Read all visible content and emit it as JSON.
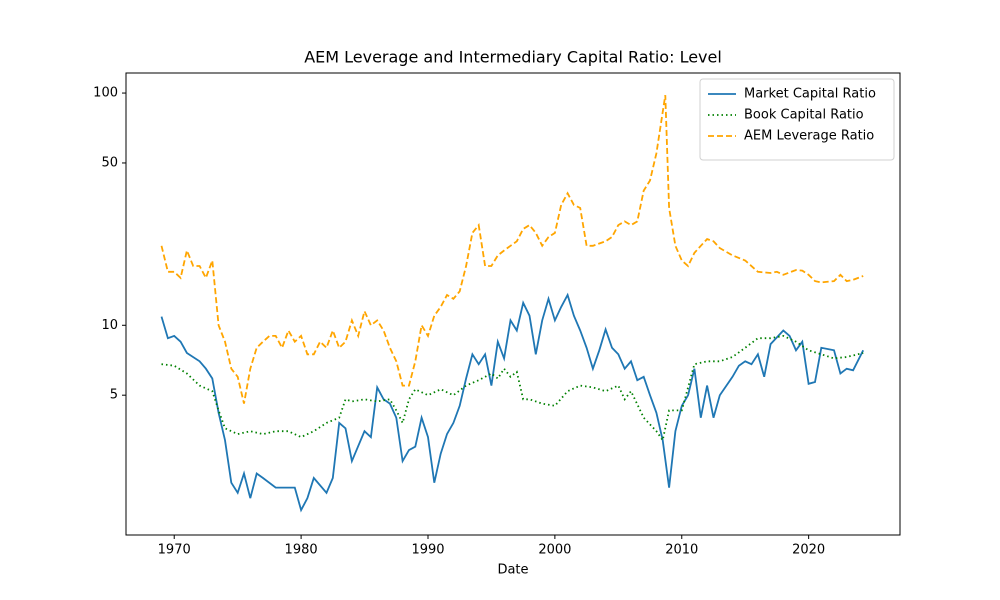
{
  "chart_data": {
    "type": "line",
    "title": "AEM Leverage and Intermediary Capital Ratio: Level",
    "x_label": "Date",
    "xlim": [
      1966.2,
      2027.2
    ],
    "xticks": [
      1970,
      1980,
      1990,
      2000,
      2010,
      2020
    ],
    "ylim": [
      1.25,
      122
    ],
    "yticks": [
      5,
      10,
      50,
      100
    ],
    "log_y": true,
    "legend": "upper right",
    "series": [
      {
        "name": "Market Capital Ratio",
        "color": "#1f77b4",
        "style": "solid",
        "x": [
          1969,
          1969.5,
          1970,
          1970.5,
          1971,
          1972,
          1972.5,
          1973,
          1973.5,
          1974,
          1974.5,
          1975,
          1975.5,
          1976,
          1976.5,
          1977,
          1978,
          1979,
          1979.5,
          1980,
          1980.5,
          1981,
          1982,
          1982.5,
          1983,
          1983.5,
          1984,
          1985,
          1985.5,
          1986,
          1986.5,
          1987,
          1987.5,
          1988,
          1988.5,
          1989,
          1989.5,
          1990,
          1990.5,
          1991,
          1991.5,
          1992,
          1992.5,
          1993,
          1993.5,
          1994,
          1994.5,
          1995,
          1995.5,
          1996,
          1996.5,
          1997,
          1997.5,
          1998,
          1998.5,
          1999,
          1999.5,
          2000,
          2000.5,
          2001,
          2001.5,
          2002,
          2002.5,
          2003,
          2003.5,
          2004,
          2004.5,
          2005,
          2005.5,
          2006,
          2006.5,
          2007,
          2007.5,
          2008,
          2008.5,
          2009,
          2009.5,
          2010,
          2010.5,
          2011,
          2011.5,
          2012,
          2012.5,
          2013,
          2014,
          2014.5,
          2015,
          2015.5,
          2016,
          2016.5,
          2017,
          2018,
          2018.5,
          2019,
          2019.5,
          2020,
          2020.5,
          2021,
          2022,
          2022.5,
          2023,
          2023.5,
          2024.3
        ],
        "values": [
          10.9,
          8.8,
          9.0,
          8.5,
          7.6,
          7.0,
          6.5,
          5.9,
          4.2,
          3.2,
          2.1,
          1.9,
          2.3,
          1.8,
          2.3,
          2.2,
          2.0,
          2.0,
          2.0,
          1.6,
          1.8,
          2.2,
          1.9,
          2.2,
          3.8,
          3.6,
          2.6,
          3.5,
          3.3,
          5.4,
          4.8,
          4.6,
          4.0,
          2.6,
          2.9,
          3.0,
          4.0,
          3.3,
          2.1,
          2.8,
          3.4,
          3.8,
          4.5,
          5.9,
          7.5,
          6.8,
          7.5,
          5.5,
          8.5,
          7.2,
          10.5,
          9.5,
          12.5,
          11.0,
          7.5,
          10.5,
          13.0,
          10.5,
          12.0,
          13.5,
          11.0,
          9.5,
          8.0,
          6.5,
          7.8,
          9.6,
          8.0,
          7.5,
          6.5,
          7.0,
          5.8,
          6.0,
          5.0,
          4.2,
          3.2,
          2.0,
          3.5,
          4.5,
          5.0,
          6.5,
          4.0,
          5.5,
          4.0,
          5.0,
          6.0,
          6.7,
          7.0,
          6.8,
          7.5,
          6.0,
          8.3,
          9.5,
          9.0,
          7.8,
          8.5,
          5.6,
          5.7,
          8.0,
          7.8,
          6.2,
          6.5,
          6.4,
          7.8
        ]
      },
      {
        "name": "Book Capital Ratio",
        "color": "#008000",
        "style": "dotted",
        "x": [
          1969,
          1970,
          1971,
          1972,
          1973,
          1973.5,
          1974,
          1975,
          1976,
          1977,
          1978,
          1979,
          1980,
          1981,
          1982,
          1983,
          1983.5,
          1984,
          1985,
          1986,
          1987,
          1987.5,
          1988,
          1988.5,
          1989,
          1990,
          1991,
          1992,
          1993,
          1994,
          1995,
          1995.5,
          1996,
          1996.5,
          1997,
          1997.5,
          1998,
          1999,
          2000,
          2001,
          2002,
          2003,
          2004,
          2005,
          2005.5,
          2006,
          2007,
          2008,
          2008.5,
          2009,
          2010,
          2011,
          2012,
          2013,
          2014,
          2015,
          2016,
          2017,
          2018,
          2019,
          2020,
          2021,
          2022,
          2023,
          2024.3
        ],
        "values": [
          6.8,
          6.7,
          6.2,
          5.5,
          5.2,
          4.3,
          3.6,
          3.4,
          3.5,
          3.4,
          3.5,
          3.5,
          3.3,
          3.5,
          3.8,
          4.0,
          4.8,
          4.7,
          4.8,
          4.7,
          4.8,
          4.3,
          3.8,
          4.8,
          5.3,
          5.0,
          5.3,
          5.0,
          5.5,
          5.8,
          6.2,
          5.9,
          6.5,
          6.0,
          6.3,
          4.8,
          4.8,
          4.6,
          4.5,
          5.2,
          5.5,
          5.4,
          5.2,
          5.5,
          4.8,
          5.2,
          4.0,
          3.5,
          3.2,
          4.3,
          4.3,
          6.8,
          7.0,
          7.0,
          7.3,
          8.0,
          8.8,
          8.8,
          9.0,
          8.5,
          7.8,
          7.5,
          7.2,
          7.3,
          7.6
        ]
      },
      {
        "name": "AEM Leverage Ratio",
        "color": "#ffa500",
        "style": "dashed",
        "x": [
          1969,
          1969.5,
          1970,
          1970.5,
          1971,
          1971.5,
          1972,
          1972.5,
          1973,
          1973.5,
          1974,
          1974.5,
          1975,
          1975.5,
          1976,
          1976.5,
          1977,
          1977.5,
          1978,
          1978.5,
          1979,
          1979.5,
          1980,
          1980.5,
          1981,
          1981.5,
          1982,
          1982.5,
          1983,
          1983.5,
          1984,
          1984.5,
          1985,
          1985.5,
          1986,
          1986.5,
          1987,
          1987.5,
          1988,
          1988.5,
          1989,
          1989.5,
          1990,
          1990.5,
          1991,
          1991.5,
          1992,
          1992.5,
          1993,
          1993.5,
          1994,
          1994.5,
          1995,
          1995.5,
          1996,
          1996.5,
          1997,
          1997.5,
          1998,
          1998.5,
          1999,
          1999.5,
          2000,
          2000.5,
          2001,
          2001.5,
          2002,
          2002.5,
          2003,
          2003.5,
          2004,
          2004.5,
          2005,
          2005.5,
          2006,
          2006.5,
          2007,
          2007.5,
          2008,
          2008.7,
          2009,
          2009.5,
          2010,
          2010.5,
          2011,
          2011.5,
          2012,
          2012.5,
          2013,
          2014,
          2015,
          2016,
          2017,
          2017.5,
          2018,
          2019,
          2019.5,
          2020,
          2020.5,
          2021,
          2022,
          2022.5,
          2023,
          2023.5,
          2024.3
        ],
        "values": [
          22,
          17,
          17,
          16,
          21,
          18,
          18,
          16,
          19,
          10,
          8.5,
          6.5,
          6.0,
          4.6,
          6.5,
          8.0,
          8.5,
          9.0,
          9.0,
          8.0,
          9.5,
          8.5,
          9.0,
          7.5,
          7.5,
          8.5,
          8.0,
          9.5,
          8.0,
          8.5,
          10.5,
          9.0,
          11.5,
          10.0,
          10.5,
          9.5,
          8.0,
          7.0,
          5.5,
          5.5,
          7.0,
          10.0,
          9.0,
          11.0,
          12.0,
          13.5,
          13.0,
          14.0,
          18.0,
          25.0,
          27.0,
          18.0,
          18.0,
          20.0,
          21.0,
          22.0,
          23.0,
          26.0,
          27.0,
          25.0,
          22.0,
          24.0,
          25.0,
          33.0,
          37.0,
          33.0,
          32.0,
          22.0,
          22.0,
          22.5,
          23.0,
          24.0,
          27.0,
          28.0,
          27.0,
          28.0,
          38.0,
          42.0,
          55.0,
          98.0,
          32.0,
          22.0,
          19.0,
          18.0,
          20.5,
          22.0,
          23.5,
          23.0,
          21.5,
          20.0,
          19.0,
          17.0,
          16.8,
          17.0,
          16.5,
          17.3,
          17.2,
          16.5,
          15.5,
          15.3,
          15.5,
          16.5,
          15.5,
          15.7,
          16.3
        ]
      }
    ]
  }
}
